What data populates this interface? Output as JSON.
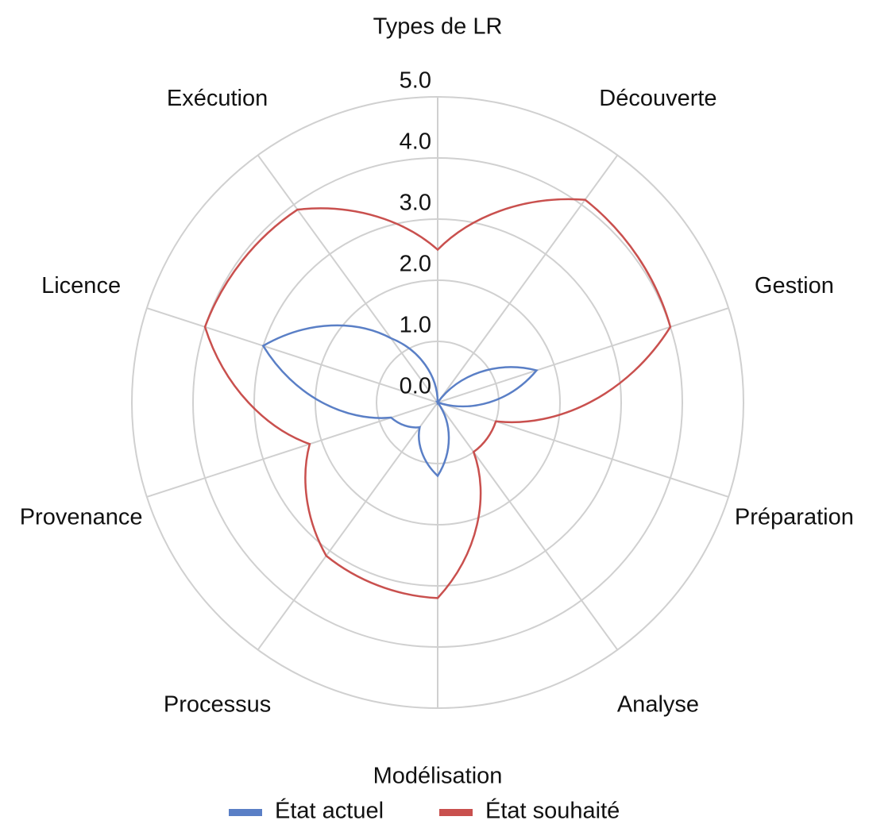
{
  "chart_data": {
    "type": "radar",
    "categories": [
      "Types de LR",
      "Découverte",
      "Gestion",
      "Préparation",
      "Analyse",
      "Modélisation",
      "Processus",
      "Provenance",
      "Licence",
      "Exécution"
    ],
    "series": [
      {
        "name": "État actuel",
        "color": "#5a7fc6",
        "values": [
          0,
          0,
          1.7,
          0,
          0,
          1.2,
          0.5,
          0.8,
          3.0,
          1.3
        ]
      },
      {
        "name": "État souhaité",
        "color": "#c9504e",
        "values": [
          2.5,
          4.1,
          4.0,
          1.0,
          1.0,
          3.2,
          3.1,
          2.2,
          4.0,
          3.9
        ]
      }
    ],
    "ylim": [
      0,
      5
    ],
    "yticks": [
      {
        "value": 0,
        "label": "0.0"
      },
      {
        "value": 1,
        "label": "1.0"
      },
      {
        "value": 2,
        "label": "2.0"
      },
      {
        "value": 3,
        "label": "3.0"
      },
      {
        "value": 4,
        "label": "4.0"
      },
      {
        "value": 5,
        "label": "5.0"
      }
    ],
    "grid": true,
    "legend": "bottom"
  }
}
